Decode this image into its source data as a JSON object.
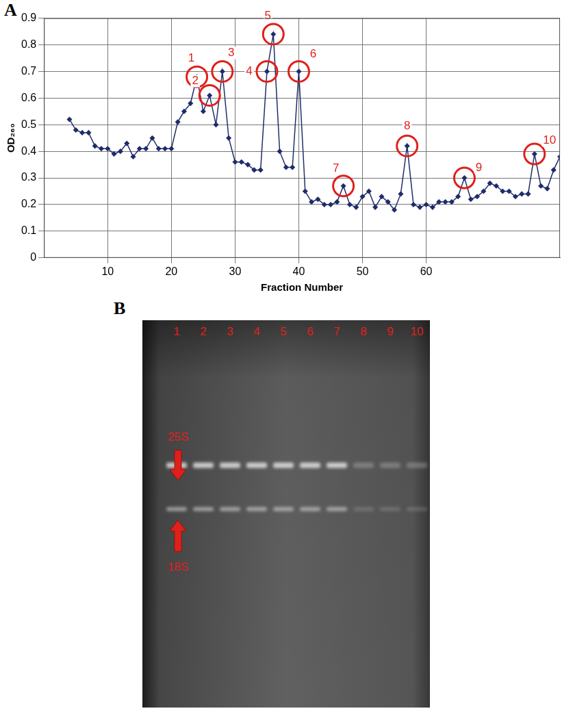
{
  "chart_data": {
    "type": "line",
    "panel_label": "A",
    "x_label": "Fraction Number",
    "y_label": "OD₂₆₀",
    "x": [
      4,
      5,
      6,
      7,
      8,
      9,
      10,
      11,
      12,
      13,
      14,
      15,
      16,
      17,
      18,
      19,
      20,
      21,
      22,
      23,
      24,
      25,
      26,
      27,
      28,
      29,
      30,
      31,
      32,
      33,
      34,
      35,
      36,
      37,
      38,
      39,
      40,
      41,
      42,
      43,
      44,
      45,
      46,
      47,
      48,
      49,
      50,
      51,
      52,
      53,
      54,
      55,
      56,
      57,
      58,
      59,
      60,
      61,
      62,
      63,
      64,
      65,
      66,
      67,
      68,
      69,
      70,
      71,
      72,
      73,
      74,
      75,
      76,
      77,
      78,
      79,
      80,
      81
    ],
    "values": [
      0.52,
      0.48,
      0.47,
      0.47,
      0.42,
      0.41,
      0.41,
      0.39,
      0.4,
      0.43,
      0.38,
      0.41,
      0.41,
      0.45,
      0.41,
      0.41,
      0.41,
      0.51,
      0.55,
      0.58,
      0.68,
      0.55,
      0.61,
      0.5,
      0.7,
      0.45,
      0.36,
      0.36,
      0.35,
      0.33,
      0.33,
      0.7,
      0.84,
      0.4,
      0.34,
      0.34,
      0.7,
      0.25,
      0.21,
      0.22,
      0.2,
      0.2,
      0.21,
      0.27,
      0.2,
      0.19,
      0.23,
      0.25,
      0.19,
      0.23,
      0.21,
      0.18,
      0.24,
      0.42,
      0.2,
      0.19,
      0.2,
      0.19,
      0.21,
      0.21,
      0.21,
      0.23,
      0.3,
      0.22,
      0.23,
      0.25,
      0.28,
      0.27,
      0.25,
      0.25,
      0.23,
      0.24,
      0.24,
      0.39,
      0.27,
      0.26,
      0.33,
      0.38
    ],
    "color": "#1f2d6b",
    "marker": "diamond",
    "xlim": [
      0,
      81
    ],
    "xticks": [
      10,
      20,
      30,
      40,
      50,
      60
    ],
    "ylim": [
      0,
      0.9
    ],
    "yticks": [
      0,
      0.1,
      0.2,
      0.3,
      0.4,
      0.5,
      0.6,
      0.7,
      0.8,
      0.9
    ],
    "grid": true,
    "annotations": [
      {
        "text": "1",
        "x": 24,
        "y": 0.68
      },
      {
        "text": "2",
        "x": 26,
        "y": 0.61
      },
      {
        "text": "3",
        "x": 28,
        "y": 0.7
      },
      {
        "text": "4",
        "x": 35,
        "y": 0.7
      },
      {
        "text": "5",
        "x": 36,
        "y": 0.84
      },
      {
        "text": "6",
        "x": 40,
        "y": 0.7
      },
      {
        "text": "7",
        "x": 47,
        "y": 0.27
      },
      {
        "text": "8",
        "x": 57,
        "y": 0.42
      },
      {
        "text": "9",
        "x": 66,
        "y": 0.3
      },
      {
        "text": "10",
        "x": 77,
        "y": 0.39
      }
    ]
  },
  "gel": {
    "panel_label": "B",
    "lanes": [
      "1",
      "2",
      "3",
      "4",
      "5",
      "6",
      "7",
      "8",
      "9",
      "10"
    ],
    "markers": [
      "25S",
      "18S"
    ]
  }
}
